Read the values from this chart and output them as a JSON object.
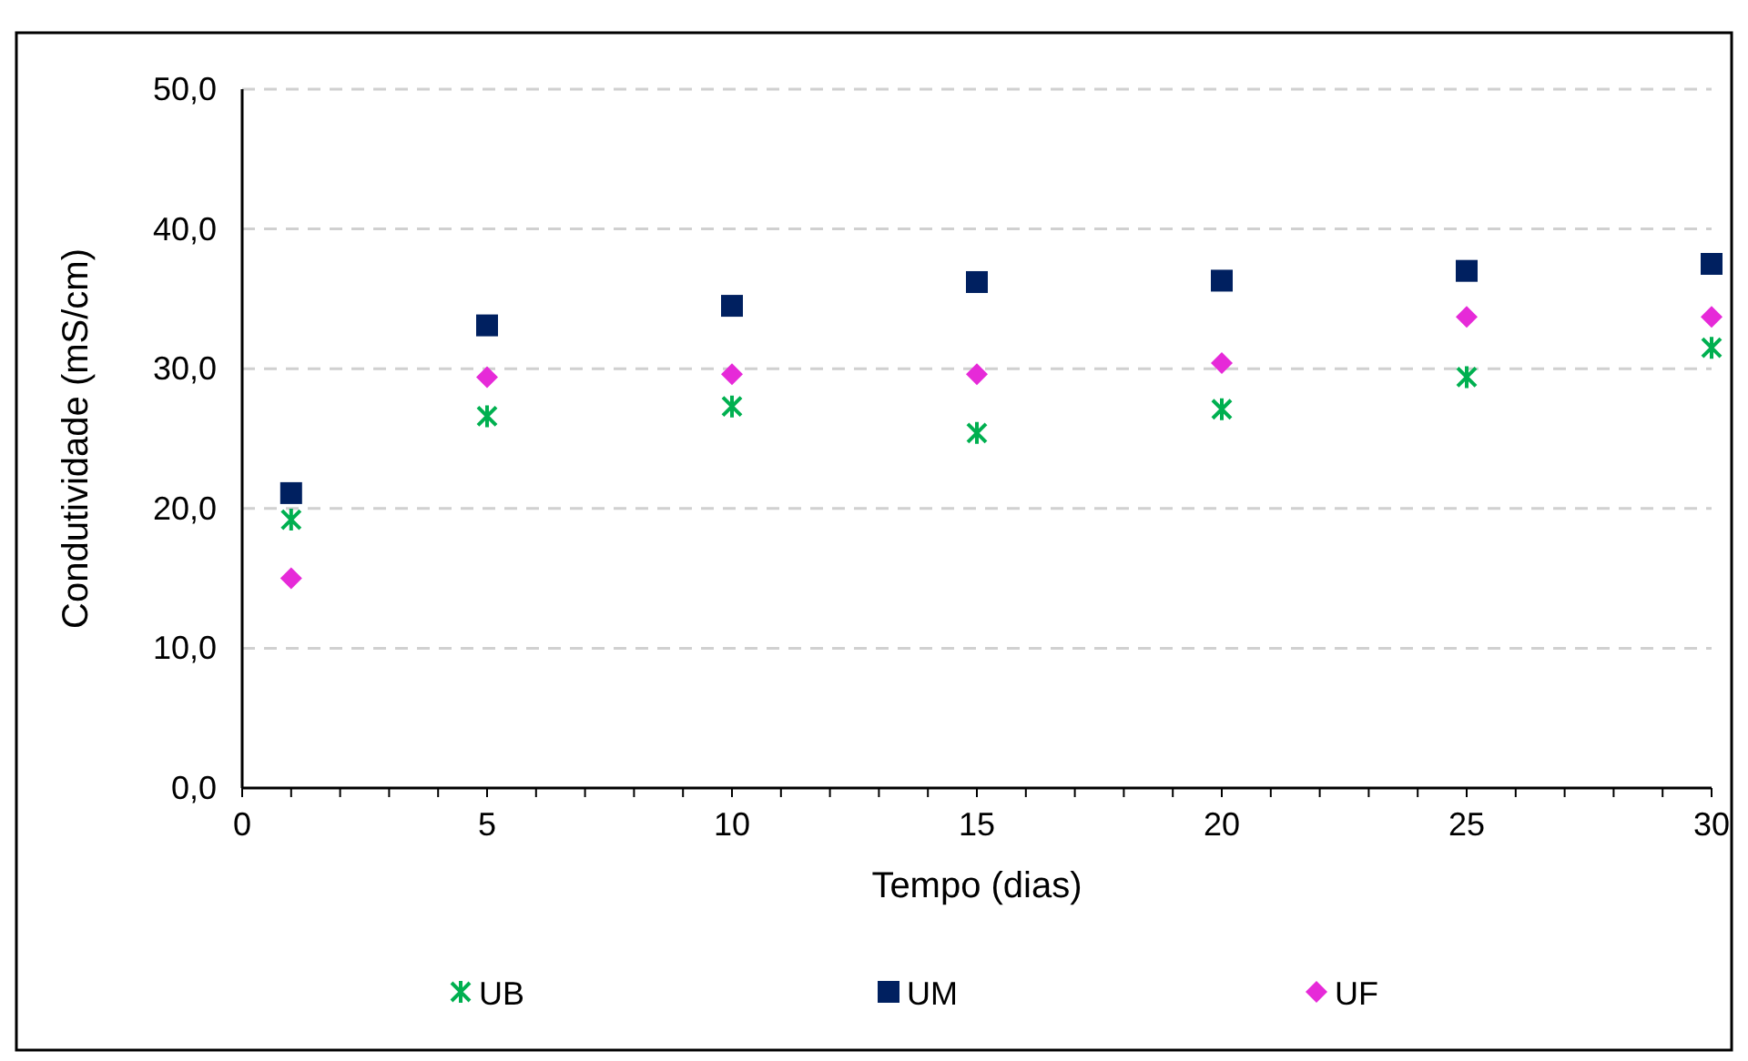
{
  "chart_data": {
    "type": "scatter",
    "xlabel": "Tempo (dias)",
    "ylabel": "Condutividade (mS/cm)",
    "x": [
      1,
      5,
      10,
      15,
      20,
      25,
      30
    ],
    "series": [
      {
        "name": "UB",
        "color": "#00b050",
        "marker": "cross",
        "values": [
          19.2,
          26.6,
          27.3,
          25.4,
          27.1,
          29.4,
          31.5
        ]
      },
      {
        "name": "UM",
        "color": "#002060",
        "marker": "square",
        "values": [
          21.1,
          33.1,
          34.5,
          36.2,
          36.3,
          37.0,
          37.5
        ]
      },
      {
        "name": "UF",
        "color": "#e62ad8",
        "marker": "diamond",
        "values": [
          15.0,
          29.4,
          29.6,
          29.6,
          30.4,
          33.7,
          33.7
        ]
      }
    ],
    "xlim": [
      0,
      30
    ],
    "xticks": [
      0,
      {
        "value": 1,
        "label": null
      },
      {
        "value": 2,
        "label": null
      },
      {
        "value": 3,
        "label": null
      },
      {
        "value": 4,
        "label": null
      },
      5,
      {
        "value": 6,
        "label": null
      },
      {
        "value": 7,
        "label": null
      },
      {
        "value": 8,
        "label": null
      },
      {
        "value": 9,
        "label": null
      },
      10,
      {
        "value": 11,
        "label": null
      },
      {
        "value": 12,
        "label": null
      },
      {
        "value": 13,
        "label": null
      },
      {
        "value": 14,
        "label": null
      },
      15,
      {
        "value": 16,
        "label": null
      },
      {
        "value": 17,
        "label": null
      },
      {
        "value": 18,
        "label": null
      },
      {
        "value": 19,
        "label": null
      },
      20,
      {
        "value": 21,
        "label": null
      },
      {
        "value": 22,
        "label": null
      },
      {
        "value": 23,
        "label": null
      },
      {
        "value": 24,
        "label": null
      },
      25,
      {
        "value": 26,
        "label": null
      },
      {
        "value": 27,
        "label": null
      },
      {
        "value": 28,
        "label": null
      },
      {
        "value": 29,
        "label": null
      },
      30
    ],
    "ylim": [
      0,
      50
    ],
    "yticks": [
      {
        "value": 0,
        "label": "0,0"
      },
      {
        "value": 10,
        "label": "10,0"
      },
      {
        "value": 20,
        "label": "20,0"
      },
      {
        "value": 30,
        "label": "30,0"
      },
      {
        "value": 40,
        "label": "40,0"
      },
      {
        "value": 50,
        "label": "50,0"
      }
    ],
    "grid": "y",
    "legend": "bottom"
  }
}
